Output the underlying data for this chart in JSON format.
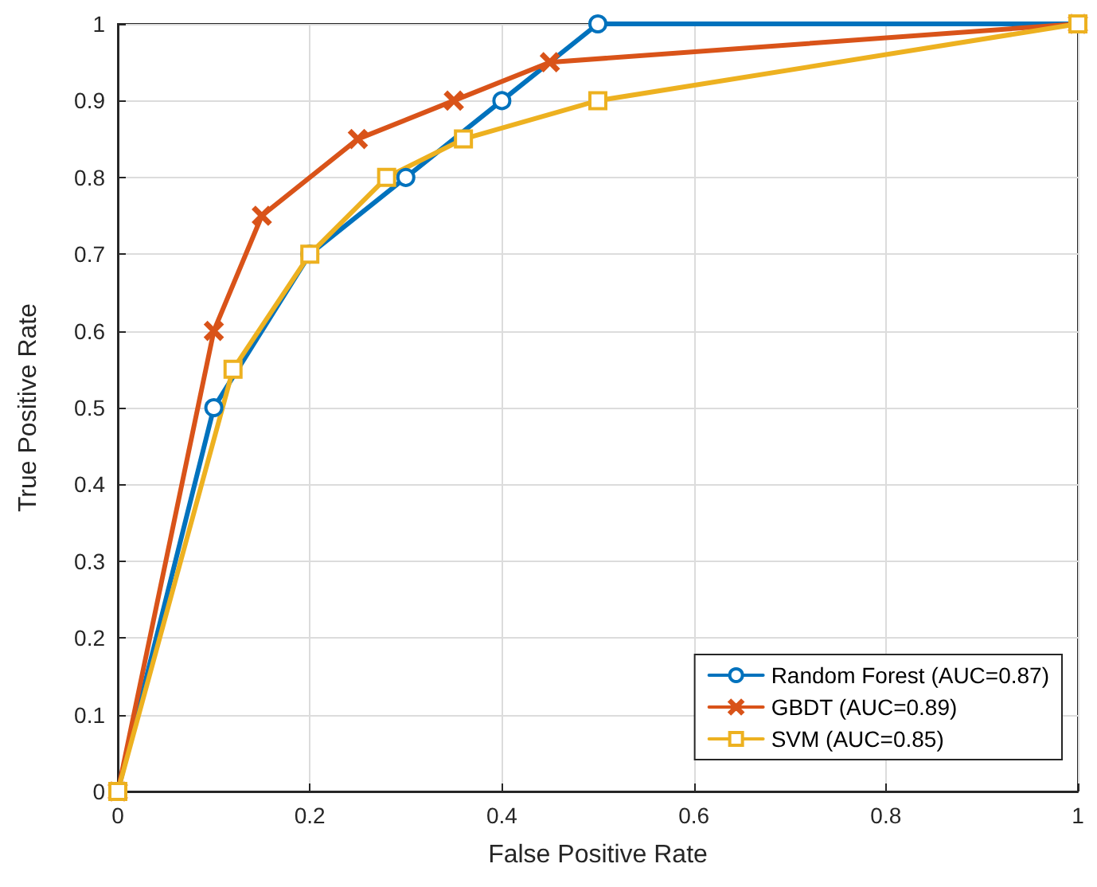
{
  "chart_data": {
    "type": "line",
    "xlabel": "False Positive Rate",
    "ylabel": "True Positive Rate",
    "xlim": [
      0,
      1
    ],
    "xticks": [
      0,
      0.2,
      0.4,
      0.6,
      0.8,
      1
    ],
    "ylim": [
      0,
      1
    ],
    "yticks": [
      0,
      0.1,
      0.2,
      0.3,
      0.4,
      0.5,
      0.6,
      0.7,
      0.8,
      0.9,
      1
    ],
    "grid": true,
    "legend": "bottom right",
    "line_style": "solid",
    "series": [
      {
        "name": "Random Forest (AUC=0.87)",
        "color": "#0072bd",
        "marker": "circle",
        "x": [
          0,
          0.1,
          0.2,
          0.3,
          0.4,
          0.5,
          1
        ],
        "values": [
          0,
          0.5,
          0.7,
          0.8,
          0.9,
          1,
          1
        ]
      },
      {
        "name": "GBDT (AUC=0.89)",
        "color": "#d95319",
        "marker": "cross",
        "x": [
          0,
          0.1,
          0.15,
          0.25,
          0.35,
          0.45,
          1
        ],
        "values": [
          0,
          0.6,
          0.75,
          0.85,
          0.9,
          0.95,
          1
        ]
      },
      {
        "name": "SVM (AUC=0.85)",
        "color": "#edb120",
        "marker": "square",
        "x": [
          0,
          0.12,
          0.2,
          0.28,
          0.36,
          0.5,
          1
        ],
        "values": [
          0,
          0.55,
          0.7,
          0.8,
          0.85,
          0.9,
          1
        ]
      }
    ]
  }
}
